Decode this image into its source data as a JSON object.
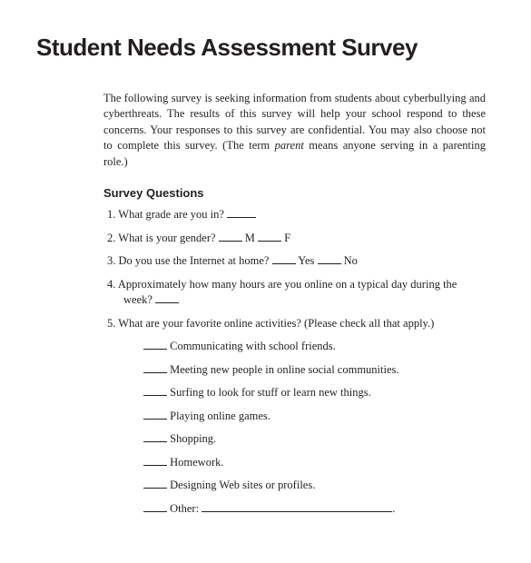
{
  "title": "Student Needs Assessment Survey",
  "intro_pre": "The following survey is seeking information from students about cyberbullying and cyberthreats. The results of this survey will help your school respond to these concerns. Your responses to this survey are confidential. You may also choose not to complete this survey. (The term ",
  "intro_italic": "parent",
  "intro_post": " means anyone serving in a parenting role.)",
  "section_heading": "Survey Questions",
  "q1_num": "1.",
  "q1_text": "What grade are you in? ",
  "q2_num": "2.",
  "q2_text": "What is your gender? ",
  "q2_opt_m": " M ",
  "q2_opt_f": " F",
  "q3_num": "3.",
  "q3_text": "Do you use the Internet at home? ",
  "q3_opt_yes": " Yes ",
  "q3_opt_no": " No",
  "q4_num": "4.",
  "q4_text": "Approximately how many hours are you online on a typical day during the week? ",
  "q5_num": "5.",
  "q5_text": "What are your favorite online activities? (Please check all that apply.)",
  "q5_opts": {
    "a": " Communicating with school friends.",
    "b": " Meeting new people in online social communities.",
    "c": " Surfing to look for stuff or learn new things.",
    "d": " Playing online games.",
    "e": " Shopping.",
    "f": " Homework.",
    "g": " Designing Web sites or profiles.",
    "h_pre": " Other: ",
    "h_post": "."
  },
  "colors": {
    "text": "#231f20",
    "background": "#ffffff"
  },
  "typography": {
    "title_font": "Helvetica Neue",
    "title_size_pt": 20,
    "title_weight": 700,
    "body_font": "Georgia",
    "body_size_pt": 9.5,
    "section_head_font": "Helvetica Neue",
    "section_head_size_pt": 10,
    "section_head_weight": 700
  }
}
